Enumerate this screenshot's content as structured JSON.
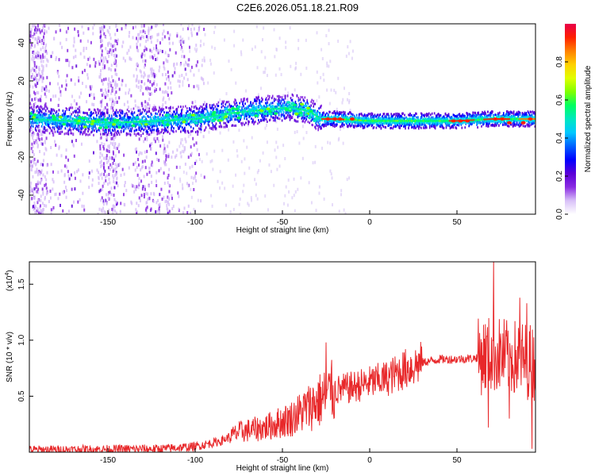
{
  "title": "C2E6.2026.051.18.21.R09",
  "chart_data": [
    {
      "type": "heatmap",
      "xlabel": "Height of straight line (km)",
      "ylabel": "Frequency (Hz)",
      "xlim": [
        -195,
        95
      ],
      "ylim": [
        -50,
        50
      ],
      "xticks": [
        -150,
        -100,
        -50,
        0,
        50
      ],
      "yticks": [
        -40,
        -20,
        0,
        20,
        40
      ],
      "colorbar": {
        "label": "Normalized spectral amplitude",
        "range": [
          0.0,
          1.0
        ],
        "ticks": [
          0.0,
          0.2,
          0.4,
          0.6,
          0.8
        ],
        "colors": [
          "#ffffff",
          "#d8c0f8",
          "#8a2be2",
          "#5a00d8",
          "#0000ff",
          "#0060ff",
          "#00c8ff",
          "#00e8c0",
          "#00ff60",
          "#80ff00",
          "#e0ff00",
          "#ffd000",
          "#ff8000",
          "#ff2000",
          "#e8004a"
        ]
      },
      "ridge_center_hz": [
        {
          "x": -195,
          "y": 0
        },
        {
          "x": -150,
          "y": -2
        },
        {
          "x": -120,
          "y": -1
        },
        {
          "x": -100,
          "y": 0
        },
        {
          "x": -80,
          "y": 3
        },
        {
          "x": -60,
          "y": 5
        },
        {
          "x": -45,
          "y": 6
        },
        {
          "x": -35,
          "y": 4
        },
        {
          "x": -28,
          "y": 0
        },
        {
          "x": -20,
          "y": 0
        },
        {
          "x": 0,
          "y": -1
        },
        {
          "x": 20,
          "y": -1
        },
        {
          "x": 50,
          "y": -1
        },
        {
          "x": 70,
          "y": 0
        },
        {
          "x": 95,
          "y": 0
        }
      ],
      "noise_bands_km": [
        [
          -195,
          -185
        ],
        [
          -155,
          -145
        ],
        [
          -135,
          -115
        ]
      ]
    },
    {
      "type": "line",
      "xlabel": "Height of straight line (km)",
      "ylabel": "SNR (10 * v/v)",
      "yscale_label": "(x10",
      "yscale_exponent": "4",
      "yscale_suffix": ")",
      "xlim": [
        -195,
        95
      ],
      "ylim": [
        0,
        1.7
      ],
      "xticks": [
        -150,
        -100,
        -50,
        0,
        50
      ],
      "yticks": [
        0.5,
        1.0,
        1.5
      ],
      "ytick_labels": [
        "0.5",
        "1.0",
        "1.5"
      ],
      "color": "#e8282a",
      "envelope": [
        {
          "x": -195,
          "y": 0.02
        },
        {
          "x": -120,
          "y": 0.03
        },
        {
          "x": -100,
          "y": 0.05
        },
        {
          "x": -85,
          "y": 0.1
        },
        {
          "x": -75,
          "y": 0.18
        },
        {
          "x": -60,
          "y": 0.22
        },
        {
          "x": -45,
          "y": 0.3
        },
        {
          "x": -30,
          "y": 0.45
        },
        {
          "x": -20,
          "y": 0.55
        },
        {
          "x": -10,
          "y": 0.58
        },
        {
          "x": 0,
          "y": 0.62
        },
        {
          "x": 10,
          "y": 0.66
        },
        {
          "x": 20,
          "y": 0.74
        },
        {
          "x": 30,
          "y": 0.8
        },
        {
          "x": 40,
          "y": 0.83
        },
        {
          "x": 50,
          "y": 0.83
        },
        {
          "x": 60,
          "y": 0.84
        },
        {
          "x": 65,
          "y": 0.86
        },
        {
          "x": 70,
          "y": 0.88
        },
        {
          "x": 80,
          "y": 0.85
        },
        {
          "x": 95,
          "y": 0.8
        }
      ],
      "spikes": [
        {
          "x": -25,
          "y": 0.98
        },
        {
          "x": -22,
          "y": 0.75
        },
        {
          "x": 68,
          "y": 0.22
        },
        {
          "x": 71,
          "y": 1.7
        },
        {
          "x": 80,
          "y": 0.3
        },
        {
          "x": 86,
          "y": 1.38
        },
        {
          "x": 90,
          "y": 1.33
        },
        {
          "x": 93,
          "y": 0.03
        }
      ]
    }
  ]
}
